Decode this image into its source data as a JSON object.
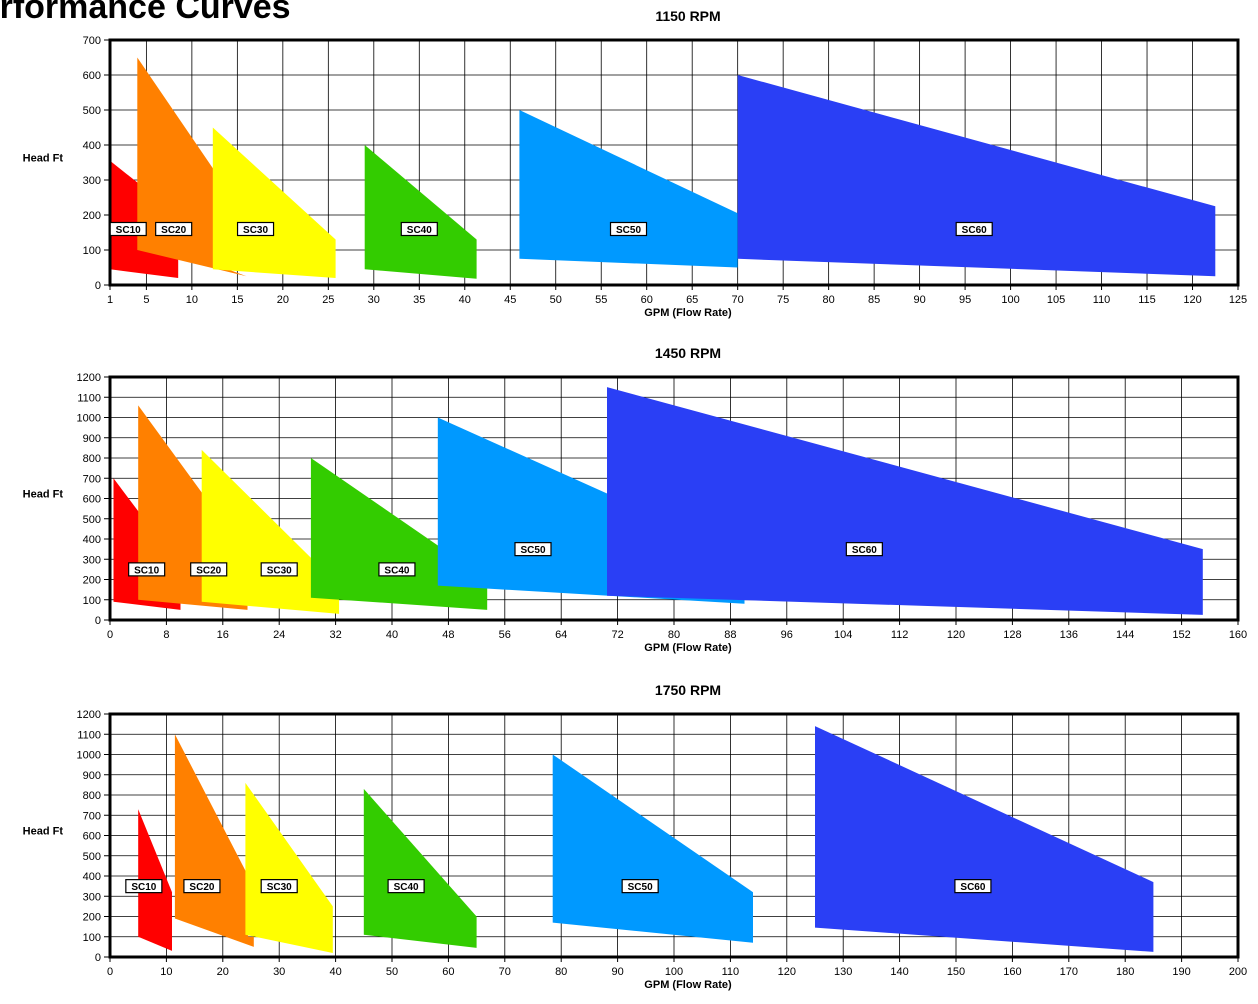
{
  "page": {
    "title": "Performance Curves"
  },
  "chart_data": [
    {
      "type": "area",
      "title": "1150 RPM",
      "xlabel": "GPM (Flow Rate)",
      "ylabel": "Head Ft",
      "xlim": [
        1,
        125
      ],
      "ylim": [
        0,
        700
      ],
      "xticks": [
        1,
        5,
        10,
        15,
        20,
        25,
        30,
        35,
        40,
        45,
        50,
        55,
        60,
        65,
        70,
        75,
        80,
        85,
        90,
        95,
        100,
        105,
        110,
        115,
        120,
        125
      ],
      "yticks": [
        0,
        100,
        200,
        300,
        400,
        500,
        600,
        700
      ],
      "grid": true,
      "series": [
        {
          "name": "SC10",
          "color": "#ff0000",
          "polygon": [
            [
              1,
              355
            ],
            [
              8.5,
              200
            ],
            [
              8.5,
              20
            ],
            [
              1,
              45
            ]
          ],
          "label_at": [
            3.0,
            160
          ]
        },
        {
          "name": "SC20",
          "color": "#ff8000",
          "polygon": [
            [
              4,
              650
            ],
            [
              12.4,
              330
            ],
            [
              12.4,
              60
            ],
            [
              16,
              25
            ],
            [
              4,
              100
            ]
          ],
          "label_at": [
            8.0,
            160
          ]
        },
        {
          "name": "SC30",
          "color": "#ffff00",
          "polygon": [
            [
              12.3,
              450
            ],
            [
              25.8,
              130
            ],
            [
              25.8,
              20
            ],
            [
              12.3,
              45
            ]
          ],
          "label_at": [
            17.0,
            160
          ]
        },
        {
          "name": "SC40",
          "color": "#33cc00",
          "polygon": [
            [
              29,
              400
            ],
            [
              41.3,
              130
            ],
            [
              41.3,
              18
            ],
            [
              29,
              45
            ]
          ],
          "label_at": [
            35.0,
            160
          ]
        },
        {
          "name": "SC50",
          "color": "#0099ff",
          "polygon": [
            [
              46,
              500
            ],
            [
              70,
              205
            ],
            [
              70,
              50
            ],
            [
              46,
              75
            ]
          ],
          "label_at": [
            58.0,
            160
          ]
        },
        {
          "name": "SC60",
          "color": "#2a3ff5",
          "polygon": [
            [
              70,
              600
            ],
            [
              122.5,
              225
            ],
            [
              122.5,
              25
            ],
            [
              70,
              75
            ]
          ],
          "label_at": [
            96.0,
            160
          ]
        }
      ]
    },
    {
      "type": "area",
      "title": "1450 RPM",
      "xlabel": "GPM (Flow Rate)",
      "ylabel": "Head Ft",
      "xlim": [
        0,
        160
      ],
      "ylim": [
        0,
        1200
      ],
      "xticks": [
        0,
        8,
        16,
        24,
        32,
        40,
        48,
        56,
        64,
        72,
        80,
        88,
        96,
        104,
        112,
        120,
        128,
        136,
        144,
        152,
        160
      ],
      "yticks": [
        0,
        100,
        200,
        300,
        400,
        500,
        600,
        700,
        800,
        900,
        1000,
        1100,
        1200
      ],
      "grid": true,
      "series": [
        {
          "name": "SC10",
          "color": "#ff0000",
          "polygon": [
            [
              0.5,
              700
            ],
            [
              10,
              260
            ],
            [
              10,
              50
            ],
            [
              0.5,
              90
            ]
          ],
          "label_at": [
            5.2,
            250
          ]
        },
        {
          "name": "SC20",
          "color": "#ff8000",
          "polygon": [
            [
              4,
              1060
            ],
            [
              19.5,
              320
            ],
            [
              19.5,
              50
            ],
            [
              4,
              100
            ]
          ],
          "label_at": [
            14.0,
            250
          ]
        },
        {
          "name": "SC30",
          "color": "#ffff00",
          "polygon": [
            [
              13,
              840
            ],
            [
              32.5,
              170
            ],
            [
              32.5,
              30
            ],
            [
              13,
              90
            ]
          ],
          "label_at": [
            24.0,
            250
          ]
        },
        {
          "name": "SC40",
          "color": "#33cc00",
          "polygon": [
            [
              28.5,
              800
            ],
            [
              53.5,
              200
            ],
            [
              53.5,
              50
            ],
            [
              28.5,
              110
            ]
          ],
          "label_at": [
            40.7,
            250
          ]
        },
        {
          "name": "SC50",
          "color": "#0099ff",
          "polygon": [
            [
              46.5,
              1000
            ],
            [
              90,
              320
            ],
            [
              90,
              80
            ],
            [
              46.5,
              170
            ]
          ],
          "label_at": [
            60.0,
            350
          ]
        },
        {
          "name": "SC60",
          "color": "#2a3ff5",
          "polygon": [
            [
              70.5,
              1150
            ],
            [
              155,
              350
            ],
            [
              155,
              25
            ],
            [
              70.5,
              120
            ]
          ],
          "label_at": [
            107.0,
            350
          ]
        }
      ]
    },
    {
      "type": "area",
      "title": "1750 RPM",
      "xlabel": "GPM (Flow Rate)",
      "ylabel": "Head Ft",
      "xlim": [
        0,
        200
      ],
      "ylim": [
        0,
        1200
      ],
      "xticks": [
        0,
        10,
        20,
        30,
        40,
        50,
        60,
        70,
        80,
        90,
        100,
        110,
        120,
        130,
        140,
        150,
        160,
        170,
        180,
        190,
        200
      ],
      "yticks": [
        0,
        100,
        200,
        300,
        400,
        500,
        600,
        700,
        800,
        900,
        1000,
        1100,
        1200
      ],
      "grid": true,
      "series": [
        {
          "name": "SC10",
          "color": "#ff0000",
          "polygon": [
            [
              5,
              730
            ],
            [
              11,
              320
            ],
            [
              11,
              30
            ],
            [
              5,
              100
            ]
          ],
          "label_at": [
            6.0,
            350
          ]
        },
        {
          "name": "SC20",
          "color": "#ff8000",
          "polygon": [
            [
              11.5,
              1100
            ],
            [
              24.5,
              400
            ],
            [
              24.5,
              100
            ],
            [
              25.5,
              100
            ],
            [
              25.5,
              50
            ],
            [
              11.5,
              190
            ]
          ],
          "label_at": [
            16.3,
            350
          ]
        },
        {
          "name": "SC30",
          "color": "#ffff00",
          "polygon": [
            [
              24,
              860
            ],
            [
              39.5,
              250
            ],
            [
              39.5,
              20
            ],
            [
              24,
              110
            ]
          ],
          "label_at": [
            30.0,
            350
          ]
        },
        {
          "name": "SC40",
          "color": "#33cc00",
          "polygon": [
            [
              45,
              830
            ],
            [
              65,
              200
            ],
            [
              65,
              45
            ],
            [
              45,
              110
            ]
          ],
          "label_at": [
            52.5,
            350
          ]
        },
        {
          "name": "SC50",
          "color": "#0099ff",
          "polygon": [
            [
              78.5,
              1000
            ],
            [
              114,
              320
            ],
            [
              114,
              70
            ],
            [
              78.5,
              170
            ]
          ],
          "label_at": [
            94.0,
            350
          ]
        },
        {
          "name": "SC60",
          "color": "#2a3ff5",
          "polygon": [
            [
              125,
              1140
            ],
            [
              185,
              370
            ],
            [
              185,
              25
            ],
            [
              125,
              145
            ]
          ],
          "label_at": [
            153.0,
            350
          ]
        }
      ]
    }
  ]
}
